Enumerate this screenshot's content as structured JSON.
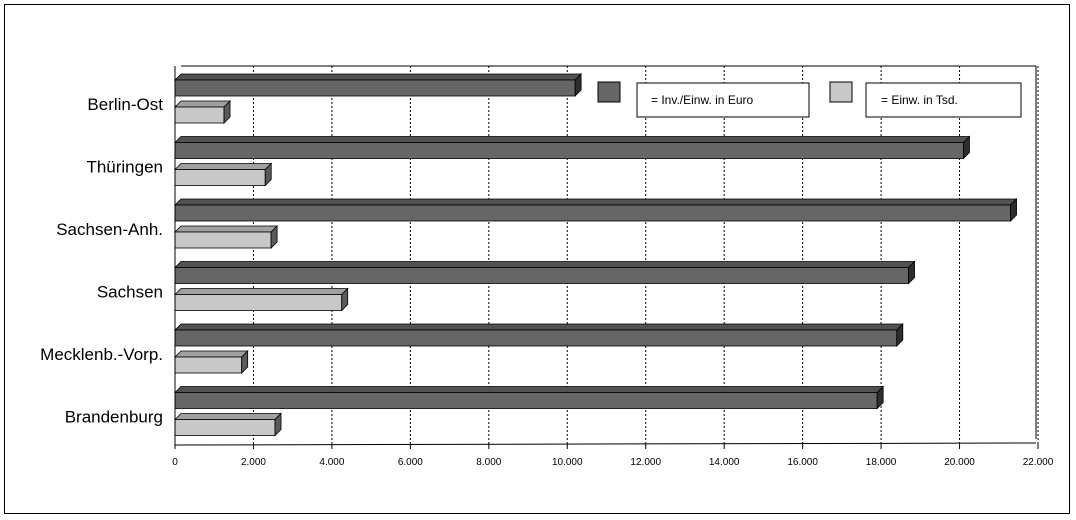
{
  "chart_data": {
    "type": "bar",
    "orientation": "horizontal",
    "categories": [
      "Berlin-Ost",
      "Thüringen",
      "Sachsen-Anh.",
      "Sachsen",
      "Mecklenb.-Vorp.",
      "Brandenburg"
    ],
    "series": [
      {
        "name": "= Inv./Einw. in Euro",
        "values": [
          10200,
          20100,
          21300,
          18700,
          18400,
          17900
        ],
        "color": "#666666"
      },
      {
        "name": "= Einw. in Tsd.",
        "values": [
          1250,
          2300,
          2450,
          4250,
          1700,
          2550
        ],
        "color": "#c8c8c8"
      }
    ],
    "xlim": [
      0,
      22000
    ],
    "xticks": [
      "0",
      "2.000",
      "4.000",
      "6.000",
      "8.000",
      "10.000",
      "12.000",
      "14.000",
      "16.000",
      "18.000",
      "20.000",
      "22.000"
    ],
    "xtick_values": [
      0,
      2000,
      4000,
      6000,
      8000,
      10000,
      12000,
      14000,
      16000,
      18000,
      20000,
      22000
    ],
    "grid": true,
    "grid_style": "dashed-vertical",
    "legend_position": "top-right"
  }
}
